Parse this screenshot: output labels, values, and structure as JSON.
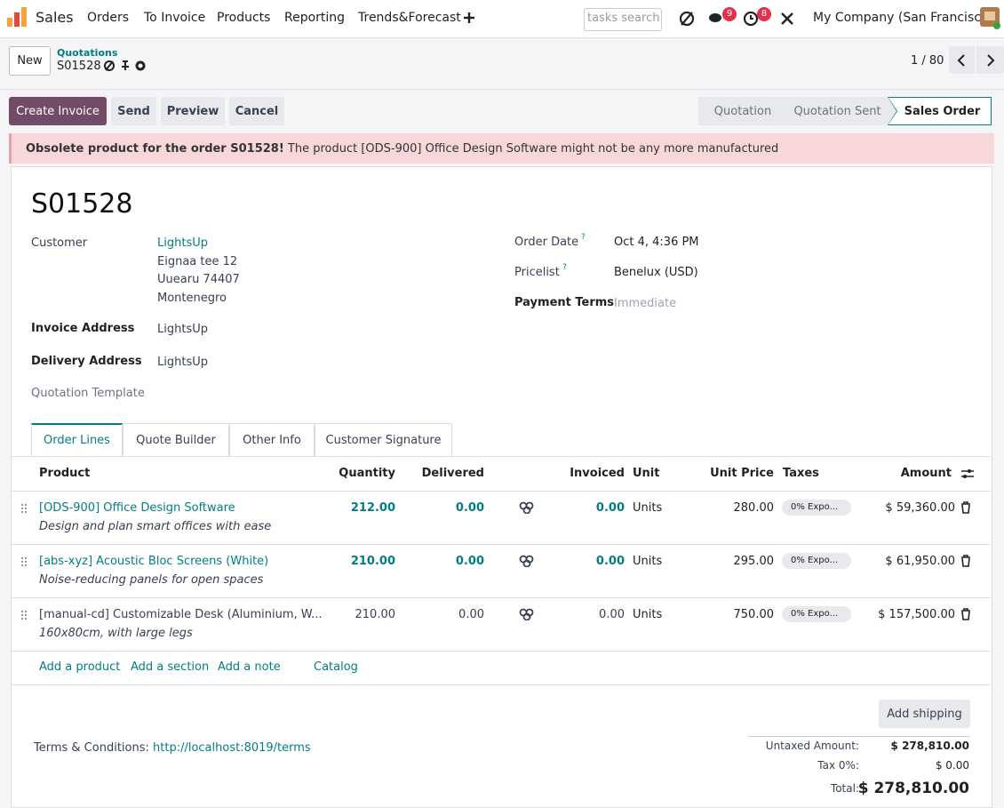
{
  "nav": {
    "app": "Sales",
    "menu": [
      "Orders",
      "To Invoice",
      "Products",
      "Reporting",
      "Trends&Forecast"
    ],
    "search": "tasks search",
    "badges": [
      "9",
      "8"
    ],
    "company": "My Company (San Francisco)"
  },
  "control": {
    "new": "New",
    "parent": "Quotations",
    "current": "S01528",
    "pager": "1 / 80"
  },
  "actions": [
    "Create Invoice",
    "Send",
    "Preview",
    "Cancel"
  ],
  "statuses": [
    "Quotation",
    "Quotation Sent",
    "Sales Order"
  ],
  "alert": {
    "strong": "Obsolete product for the order S01528!",
    "text": "The product [ODS-900] Office Design Software might not be any more manufactured"
  },
  "form": {
    "name": "S01528",
    "customer_label": "Customer",
    "customer": "LightsUp",
    "address": [
      "Eignaa tee 12",
      "Uuearu 74407",
      "Montenegro"
    ],
    "invoice_label": "Invoice Address",
    "invoice": "LightsUp",
    "delivery_label": "Delivery Address",
    "delivery": "LightsUp",
    "template_label": "Quotation Template",
    "date_label": "Order Date",
    "date_help": "?",
    "date": "Oct 4, 4:36 PM",
    "pricelist_label": "Pricelist",
    "pricelist_help": "?",
    "pricelist": "Benelux (USD)",
    "terms_label": "Payment Terms",
    "terms": "Immediate"
  },
  "tabs": [
    "Order Lines",
    "Quote Builder",
    "Other Info",
    "Customer Signature"
  ],
  "table": {
    "headers": [
      "Product",
      "Quantity",
      "Delivered",
      "Invoiced",
      "Unit",
      "Unit Price",
      "Taxes",
      "Amount"
    ],
    "rows": [
      {
        "product": "[ODS-900] Office Design Software",
        "description": "Design and plan smart offices with ease",
        "quantity": "212.00",
        "delivered": "0.00",
        "invoiced": "0.00",
        "unit": "Units",
        "price": "280.00",
        "tax": "0% Expo...",
        "amount": "$ 59,360.00"
      },
      {
        "product": "[abs-xyz] Acoustic Bloc Screens (White)",
        "description": "Noise-reducing panels for open spaces",
        "quantity": "210.00",
        "delivered": "0.00",
        "invoiced": "0.00",
        "unit": "Units",
        "price": "295.00",
        "tax": "0% Expo...",
        "amount": "$ 61,950.00"
      },
      {
        "product": "[manual-cd] Customizable Desk (Aluminium, W...",
        "description": "160x80cm, with large legs",
        "quantity": "210.00",
        "delivered": "0.00",
        "invoiced": "0.00",
        "unit": "Units",
        "price": "750.00",
        "tax": "0% Expo...",
        "amount": "$ 157,500.00"
      }
    ],
    "add_links": [
      "Add a product",
      "Add a section",
      "Add a note",
      "Catalog"
    ]
  },
  "footer": {
    "shipping": "Add shipping",
    "terms_label": "Terms & Conditions:",
    "terms_link": "http://localhost:8019/terms",
    "totals": [
      {
        "label": "Untaxed Amount:",
        "value": "$ 278,810.00"
      },
      {
        "label": "Tax 0%:",
        "value": "$ 0.00"
      },
      {
        "label": "Total:",
        "value": "$ 278,810.00"
      }
    ]
  }
}
